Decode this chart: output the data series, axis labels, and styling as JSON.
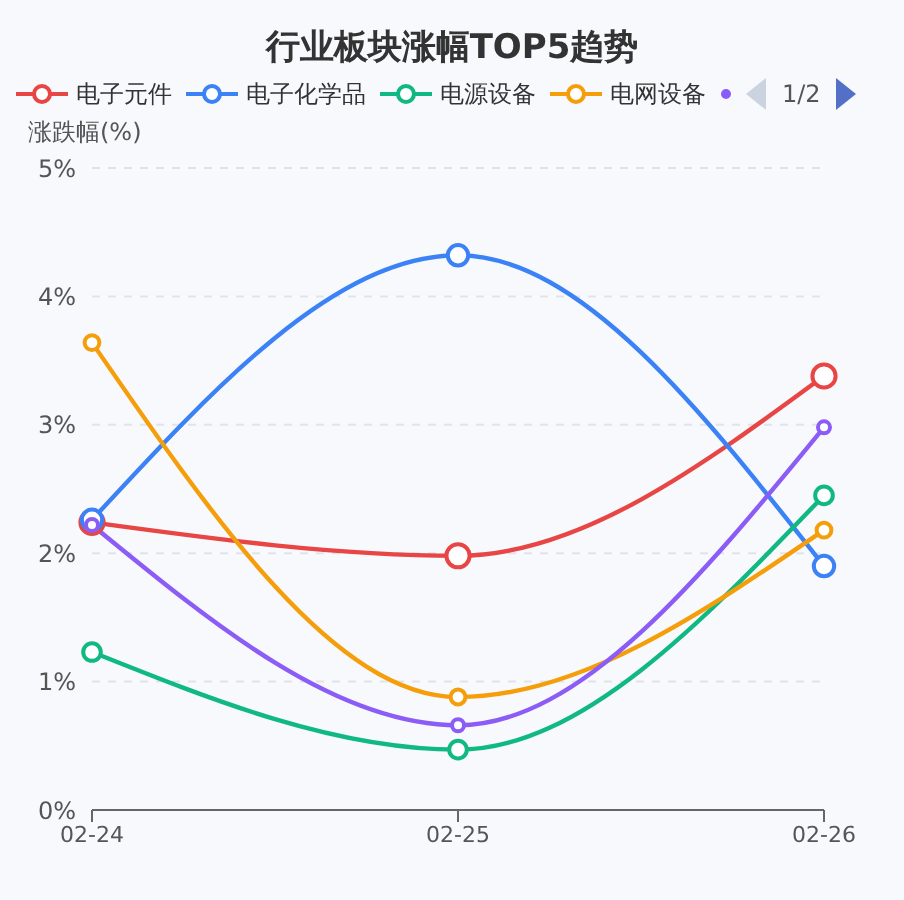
{
  "chart_data": {
    "type": "line",
    "title": "行业板块涨幅TOP5趋势",
    "ylabel": "涨跌幅(%)",
    "categories": [
      "02-24",
      "02-25",
      "02-26"
    ],
    "series": [
      {
        "name": "电子元件",
        "color": "#e84545",
        "values": [
          2.24,
          1.98,
          3.38
        ]
      },
      {
        "name": "电子化学品",
        "color": "#3b82f6",
        "values": [
          2.26,
          4.32,
          1.9
        ]
      },
      {
        "name": "电源设备",
        "color": "#10b981",
        "values": [
          1.23,
          0.47,
          2.45
        ]
      },
      {
        "name": "电网设备",
        "color": "#f59e0b",
        "values": [
          3.64,
          0.88,
          2.18
        ]
      },
      {
        "color": "#8b5cf6",
        "values": [
          2.22,
          0.66,
          2.98
        ]
      }
    ],
    "ylim": [
      0,
      5
    ],
    "yticks": [
      {
        "value": 0,
        "label": "0%"
      },
      {
        "value": 1,
        "label": "1%"
      },
      {
        "value": 2,
        "label": "2%"
      },
      {
        "value": 3,
        "label": "3%"
      },
      {
        "value": 4,
        "label": "4%"
      },
      {
        "value": 5,
        "label": "5%"
      }
    ],
    "grid": "y",
    "legend": "top",
    "marker": "circle",
    "line_style": "solid",
    "annotations": [
      "1/2"
    ]
  }
}
